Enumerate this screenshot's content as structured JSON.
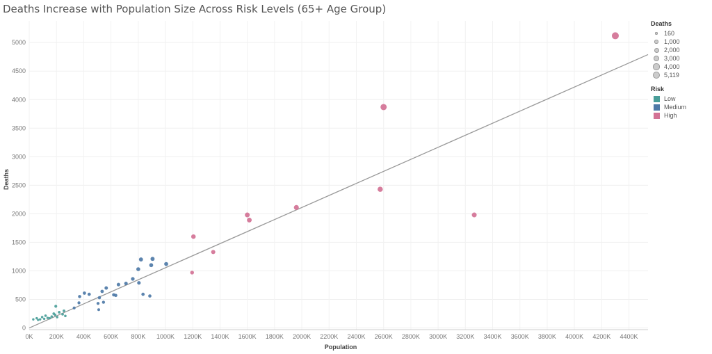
{
  "title": "Deaths Increase with Population Size Across Risk Levels (65+ Age Group)",
  "chart_data": {
    "type": "scatter",
    "title": "Deaths Increase with Population Size Across Risk Levels (65+ Age Group)",
    "xlabel": "Population",
    "ylabel": "Deaths",
    "xlim": [
      0,
      4540000
    ],
    "ylim": [
      -30,
      5380
    ],
    "x_ticks": [
      0,
      200000,
      400000,
      600000,
      800000,
      1000000,
      1200000,
      1400000,
      1600000,
      1800000,
      2000000,
      2200000,
      2400000,
      2600000,
      2800000,
      3000000,
      3200000,
      3400000,
      3600000,
      3800000,
      4000000,
      4200000,
      4400000
    ],
    "x_tick_labels": [
      "0K",
      "200K",
      "400K",
      "600K",
      "800K",
      "1000K",
      "1200K",
      "1400K",
      "1600K",
      "1800K",
      "2000K",
      "2200K",
      "2400K",
      "2600K",
      "2800K",
      "3000K",
      "3200K",
      "3400K",
      "3600K",
      "3800K",
      "4000K",
      "4200K",
      "4400K"
    ],
    "y_ticks": [
      0,
      500,
      1000,
      1500,
      2000,
      2500,
      3000,
      3500,
      4000,
      4500,
      5000
    ],
    "y_tick_labels": [
      "0",
      "500",
      "1000",
      "1500",
      "2000",
      "2500",
      "3000",
      "3500",
      "4000",
      "4500",
      "5000"
    ],
    "grid": true,
    "trend_line": {
      "x": [
        0,
        4540000
      ],
      "y": [
        0,
        4790
      ]
    },
    "colors": {
      "Low": "#4a9e99",
      "Medium": "#4e79a7",
      "High": "#d37295",
      "trend": "#999999"
    },
    "size_legend": {
      "title": "Deaths",
      "values": [
        160,
        1000,
        2000,
        3000,
        4000,
        5119
      ],
      "labels": [
        "160",
        "1,000",
        "2,000",
        "3,000",
        "4,000",
        "5,119"
      ]
    },
    "color_legend": {
      "title": "Risk",
      "items": [
        "Low",
        "Medium",
        "High"
      ]
    },
    "series": [
      {
        "name": "Low",
        "points": [
          {
            "x": 30000,
            "y": 150
          },
          {
            "x": 55000,
            "y": 170
          },
          {
            "x": 65000,
            "y": 140
          },
          {
            "x": 80000,
            "y": 150
          },
          {
            "x": 95000,
            "y": 190
          },
          {
            "x": 110000,
            "y": 160
          },
          {
            "x": 120000,
            "y": 215
          },
          {
            "x": 135000,
            "y": 175
          },
          {
            "x": 150000,
            "y": 170
          },
          {
            "x": 165000,
            "y": 200
          },
          {
            "x": 180000,
            "y": 250
          },
          {
            "x": 190000,
            "y": 230
          },
          {
            "x": 195000,
            "y": 380
          },
          {
            "x": 205000,
            "y": 190
          },
          {
            "x": 220000,
            "y": 275
          },
          {
            "x": 245000,
            "y": 240
          },
          {
            "x": 255000,
            "y": 300
          },
          {
            "x": 265000,
            "y": 210
          }
        ]
      },
      {
        "name": "Medium",
        "points": [
          {
            "x": 330000,
            "y": 350
          },
          {
            "x": 365000,
            "y": 440
          },
          {
            "x": 370000,
            "y": 550
          },
          {
            "x": 405000,
            "y": 610
          },
          {
            "x": 440000,
            "y": 590
          },
          {
            "x": 505000,
            "y": 430
          },
          {
            "x": 510000,
            "y": 320
          },
          {
            "x": 515000,
            "y": 530
          },
          {
            "x": 535000,
            "y": 640
          },
          {
            "x": 545000,
            "y": 450
          },
          {
            "x": 565000,
            "y": 700
          },
          {
            "x": 620000,
            "y": 580
          },
          {
            "x": 635000,
            "y": 570
          },
          {
            "x": 655000,
            "y": 760
          },
          {
            "x": 710000,
            "y": 780
          },
          {
            "x": 760000,
            "y": 860
          },
          {
            "x": 800000,
            "y": 1030
          },
          {
            "x": 805000,
            "y": 790
          },
          {
            "x": 820000,
            "y": 1200
          },
          {
            "x": 835000,
            "y": 590
          },
          {
            "x": 885000,
            "y": 560
          },
          {
            "x": 895000,
            "y": 1100
          },
          {
            "x": 905000,
            "y": 1210
          },
          {
            "x": 1005000,
            "y": 1120
          }
        ]
      },
      {
        "name": "High",
        "points": [
          {
            "x": 1195000,
            "y": 970
          },
          {
            "x": 1205000,
            "y": 1600
          },
          {
            "x": 1350000,
            "y": 1330
          },
          {
            "x": 1600000,
            "y": 1980
          },
          {
            "x": 1615000,
            "y": 1890
          },
          {
            "x": 1960000,
            "y": 2110
          },
          {
            "x": 2575000,
            "y": 2430
          },
          {
            "x": 2600000,
            "y": 3870
          },
          {
            "x": 3265000,
            "y": 1980
          },
          {
            "x": 4300000,
            "y": 5119
          }
        ]
      }
    ]
  }
}
